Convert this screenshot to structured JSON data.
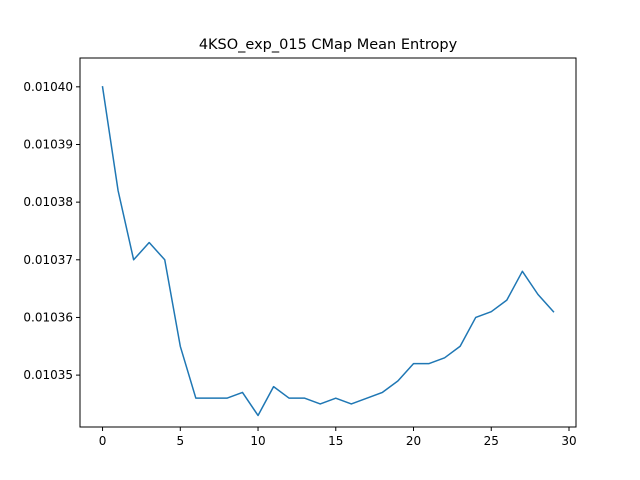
{
  "chart_data": {
    "type": "line",
    "title": "4KSO_exp_015 CMap Mean Entropy",
    "xlabel": "",
    "ylabel": "",
    "xlim": [
      -1.45,
      30.45
    ],
    "ylim": [
      0.010341,
      0.010405
    ],
    "xticks": [
      0,
      5,
      10,
      15,
      20,
      25,
      30
    ],
    "yticks": [
      0.01035,
      0.01036,
      0.01037,
      0.01038,
      0.01039,
      0.0104
    ],
    "ytick_labels": [
      "0.01035",
      "0.01036",
      "0.01037",
      "0.01038",
      "0.01039",
      "0.01040"
    ],
    "grid": false,
    "legend": "none",
    "series": [
      {
        "color": "#1f77b4",
        "x": [
          0,
          1,
          2,
          3,
          4,
          5,
          6,
          7,
          8,
          9,
          10,
          11,
          12,
          13,
          14,
          15,
          16,
          17,
          18,
          19,
          20,
          21,
          22,
          23,
          24,
          25,
          26,
          27,
          28,
          29
        ],
        "values": [
          0.0104,
          0.010382,
          0.01037,
          0.010373,
          0.01037,
          0.010355,
          0.010346,
          0.010346,
          0.010346,
          0.010347,
          0.010343,
          0.010348,
          0.010346,
          0.010346,
          0.010345,
          0.010346,
          0.010345,
          0.010346,
          0.010347,
          0.010349,
          0.010352,
          0.010352,
          0.010353,
          0.010355,
          0.01036,
          0.010361,
          0.010363,
          0.010368,
          0.010364,
          0.010361
        ]
      }
    ]
  }
}
